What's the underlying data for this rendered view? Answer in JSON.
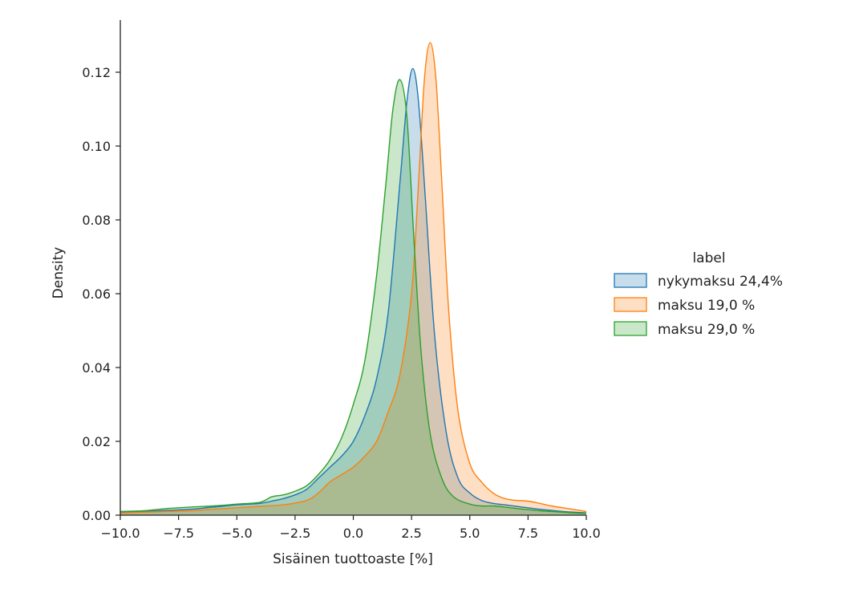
{
  "chart_data": {
    "type": "area",
    "xlabel": "Sisäinen tuottoaste [%]",
    "ylabel": "Density",
    "xlim": [
      -10,
      10
    ],
    "ylim": [
      0,
      0.13
    ],
    "x_ticks": [
      "−10.0",
      "−7.5",
      "−5.0",
      "−2.5",
      "0.0",
      "2.5",
      "5.0",
      "7.5",
      "10.0"
    ],
    "y_ticks": [
      "0.00",
      "0.02",
      "0.04",
      "0.06",
      "0.08",
      "0.10",
      "0.12"
    ],
    "legend": {
      "title": "label",
      "placement": "right"
    },
    "grid": false,
    "series": [
      {
        "name": "nykymaksu 24,4%",
        "color": "#1f77b4",
        "points": [
          [
            -10,
            0.0008
          ],
          [
            -9,
            0.001
          ],
          [
            -8,
            0.0013
          ],
          [
            -7,
            0.0016
          ],
          [
            -6,
            0.0022
          ],
          [
            -5,
            0.0028
          ],
          [
            -4,
            0.0032
          ],
          [
            -3.5,
            0.0038
          ],
          [
            -3,
            0.0045
          ],
          [
            -2.5,
            0.0055
          ],
          [
            -2,
            0.007
          ],
          [
            -1.5,
            0.01
          ],
          [
            -1,
            0.013
          ],
          [
            -0.5,
            0.016
          ],
          [
            0,
            0.02
          ],
          [
            0.5,
            0.027
          ],
          [
            1,
            0.037
          ],
          [
            1.5,
            0.055
          ],
          [
            2,
            0.09
          ],
          [
            2.3,
            0.112
          ],
          [
            2.55,
            0.121
          ],
          [
            2.8,
            0.112
          ],
          [
            3.1,
            0.085
          ],
          [
            3.5,
            0.048
          ],
          [
            4,
            0.022
          ],
          [
            4.5,
            0.01
          ],
          [
            5,
            0.006
          ],
          [
            5.5,
            0.004
          ],
          [
            6,
            0.0032
          ],
          [
            6.5,
            0.0028
          ],
          [
            7,
            0.0024
          ],
          [
            7.5,
            0.002
          ],
          [
            8,
            0.0016
          ],
          [
            8.5,
            0.0013
          ],
          [
            9,
            0.001
          ],
          [
            9.5,
            0.0008
          ],
          [
            10,
            0.0006
          ]
        ]
      },
      {
        "name": "maksu 19,0 %",
        "color": "#ff7f0e",
        "points": [
          [
            -10,
            0.0006
          ],
          [
            -9,
            0.0008
          ],
          [
            -8,
            0.001
          ],
          [
            -7,
            0.0012
          ],
          [
            -6,
            0.0016
          ],
          [
            -5,
            0.002
          ],
          [
            -4,
            0.0024
          ],
          [
            -3,
            0.0028
          ],
          [
            -2,
            0.004
          ],
          [
            -1.5,
            0.006
          ],
          [
            -1,
            0.009
          ],
          [
            -0.5,
            0.011
          ],
          [
            0,
            0.013
          ],
          [
            0.5,
            0.016
          ],
          [
            1,
            0.02
          ],
          [
            1.5,
            0.028
          ],
          [
            2,
            0.038
          ],
          [
            2.5,
            0.06
          ],
          [
            2.8,
            0.09
          ],
          [
            3.05,
            0.118
          ],
          [
            3.3,
            0.128
          ],
          [
            3.55,
            0.118
          ],
          [
            3.8,
            0.09
          ],
          [
            4.1,
            0.055
          ],
          [
            4.5,
            0.028
          ],
          [
            5,
            0.014
          ],
          [
            5.5,
            0.009
          ],
          [
            6,
            0.006
          ],
          [
            6.5,
            0.0045
          ],
          [
            7,
            0.004
          ],
          [
            7.5,
            0.0038
          ],
          [
            8,
            0.0032
          ],
          [
            8.5,
            0.0025
          ],
          [
            9,
            0.002
          ],
          [
            9.5,
            0.0015
          ],
          [
            10,
            0.001
          ]
        ]
      },
      {
        "name": "maksu 29,0 %",
        "color": "#2ca02c",
        "points": [
          [
            -10,
            0.001
          ],
          [
            -9,
            0.0012
          ],
          [
            -8,
            0.0018
          ],
          [
            -7,
            0.0022
          ],
          [
            -6,
            0.0025
          ],
          [
            -5,
            0.003
          ],
          [
            -4,
            0.0035
          ],
          [
            -3.5,
            0.005
          ],
          [
            -3,
            0.0055
          ],
          [
            -2.5,
            0.0065
          ],
          [
            -2,
            0.008
          ],
          [
            -1.5,
            0.011
          ],
          [
            -1,
            0.015
          ],
          [
            -0.5,
            0.021
          ],
          [
            0,
            0.03
          ],
          [
            0.5,
            0.042
          ],
          [
            1,
            0.065
          ],
          [
            1.4,
            0.09
          ],
          [
            1.7,
            0.11
          ],
          [
            2,
            0.118
          ],
          [
            2.3,
            0.108
          ],
          [
            2.6,
            0.075
          ],
          [
            2.9,
            0.045
          ],
          [
            3.3,
            0.022
          ],
          [
            3.8,
            0.01
          ],
          [
            4.3,
            0.005
          ],
          [
            5,
            0.003
          ],
          [
            5.5,
            0.0025
          ],
          [
            6,
            0.0025
          ],
          [
            6.5,
            0.0022
          ],
          [
            7,
            0.0018
          ],
          [
            7.5,
            0.0015
          ],
          [
            8,
            0.0012
          ],
          [
            8.5,
            0.001
          ],
          [
            9,
            0.0008
          ],
          [
            9.5,
            0.0006
          ],
          [
            10,
            0.0005
          ]
        ]
      }
    ]
  }
}
